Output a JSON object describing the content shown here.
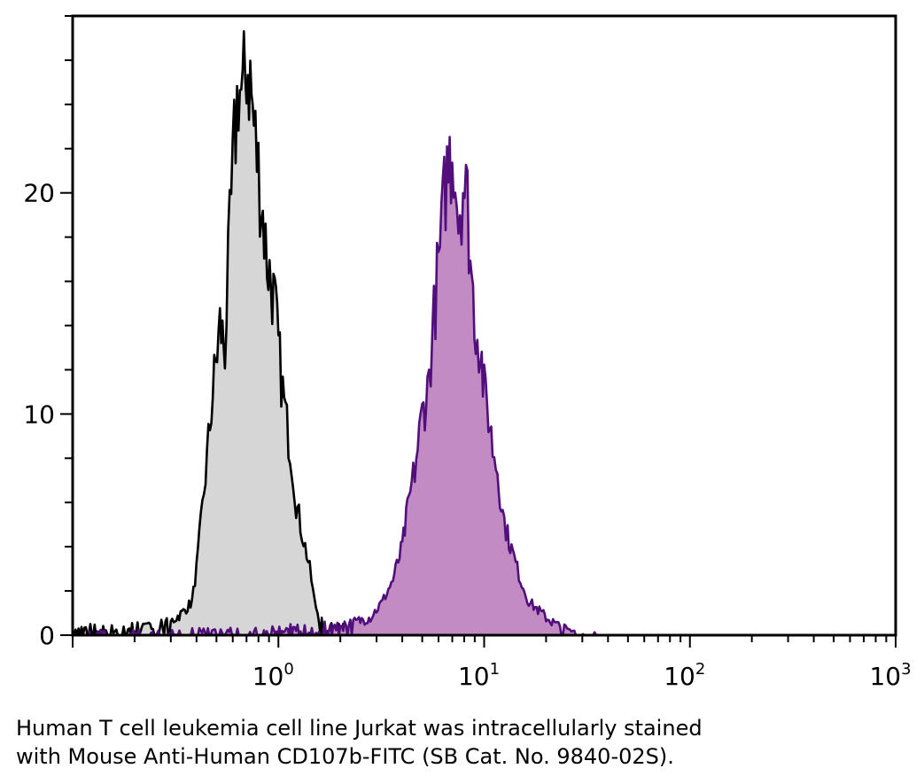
{
  "chart_data": {
    "type": "area",
    "title": "",
    "xlabel": "",
    "ylabel": "",
    "xscale": "log",
    "xlim": [
      0.1,
      1000
    ],
    "ylim": [
      0,
      28
    ],
    "x_ticks": [
      {
        "base": "10",
        "exp": "0",
        "value": 1
      },
      {
        "base": "10",
        "exp": "1",
        "value": 10
      },
      {
        "base": "10",
        "exp": "2",
        "value": 100
      },
      {
        "base": "10",
        "exp": "3",
        "value": 1000
      }
    ],
    "y_ticks": [
      {
        "label": "0",
        "value": 0
      },
      {
        "label": "10",
        "value": 10
      },
      {
        "label": "20",
        "value": 20
      }
    ],
    "series": [
      {
        "fill": "#d6d6d6",
        "stroke": "#000000",
        "x": [
          0.1,
          0.12,
          0.15,
          0.18,
          0.22,
          0.27,
          0.3,
          0.34,
          0.38,
          0.4,
          0.42,
          0.45,
          0.48,
          0.52,
          0.55,
          0.58,
          0.61,
          0.64,
          0.67,
          0.7,
          0.73,
          0.76,
          0.8,
          0.84,
          0.88,
          0.92,
          0.96,
          1.0,
          1.05,
          1.1,
          1.16,
          1.22,
          1.28,
          1.35,
          1.42,
          1.5,
          1.6,
          1.75,
          2.0,
          2.5,
          3.0,
          3.5
        ],
        "y": [
          0.1,
          0.3,
          0.2,
          0.4,
          0.3,
          0.5,
          0.6,
          1.0,
          1.5,
          3.0,
          5.0,
          8.0,
          11.0,
          14.0,
          13.0,
          18.0,
          22.0,
          25.0,
          24.0,
          26.0,
          25.0,
          23.0,
          21.0,
          19.0,
          17.0,
          16.0,
          15.0,
          13.0,
          11.0,
          9.5,
          8.0,
          6.0,
          5.0,
          4.0,
          3.0,
          1.5,
          0.6,
          0.3,
          0.3,
          0.2,
          0.1,
          0.0
        ]
      },
      {
        "fill": "#c28bc4",
        "stroke": "#520f7c",
        "x": [
          0.12,
          0.2,
          0.3,
          0.5,
          0.8,
          1.2,
          2.0,
          2.8,
          3.2,
          3.6,
          4.0,
          4.3,
          4.6,
          5.0,
          5.3,
          5.6,
          5.9,
          6.2,
          6.5,
          6.8,
          7.1,
          7.5,
          7.9,
          8.3,
          8.7,
          9.1,
          9.6,
          10.0,
          10.5,
          11.0,
          11.6,
          12.3,
          13.0,
          14.0,
          15.0,
          16.5,
          18.0,
          20.0,
          23.0,
          27.0,
          35.0
        ],
        "y": [
          0.1,
          0.2,
          0.1,
          0.2,
          0.1,
          0.3,
          0.4,
          0.8,
          1.5,
          2.5,
          4.0,
          6.0,
          7.5,
          10.0,
          11.0,
          13.5,
          16.0,
          18.0,
          20.5,
          21.5,
          22.0,
          19.0,
          20.5,
          19.5,
          16.0,
          14.0,
          13.0,
          11.0,
          10.0,
          8.5,
          7.5,
          5.5,
          4.5,
          3.5,
          2.5,
          1.5,
          1.2,
          0.8,
          0.4,
          0.2,
          0.0
        ]
      }
    ],
    "legend": "none",
    "grid": false
  },
  "caption": {
    "line1": "Human T cell leukemia cell line Jurkat was intracellularly stained",
    "line2": "with Mouse Anti-Human CD107b-FITC (SB Cat. No. 9840-02S)."
  }
}
